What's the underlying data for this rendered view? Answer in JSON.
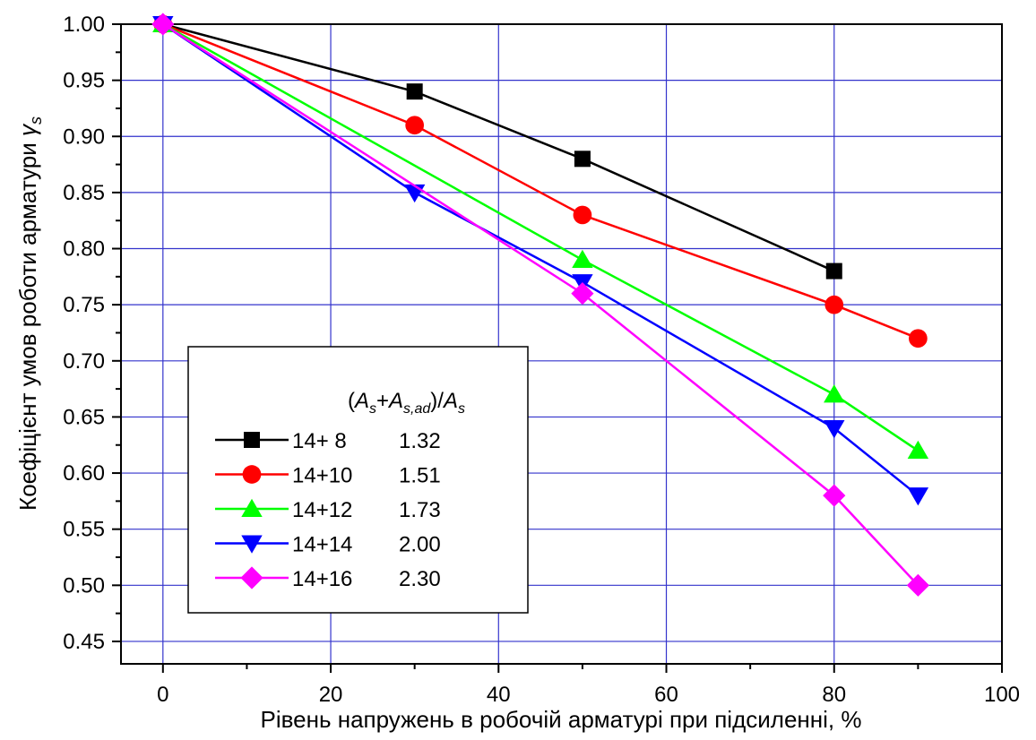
{
  "chart_data": {
    "type": "line",
    "xlabel": "Рівень напружень в робочій арматурі при підсиленні, %",
    "ylabel_main": "Коефіцієнт умов роботи арматури ",
    "ylabel_symbol": "γ",
    "ylabel_subscript": "s",
    "xlim": [
      -5,
      100
    ],
    "ylim": [
      0.43,
      1.0
    ],
    "x_ticks": [
      0,
      20,
      40,
      60,
      80,
      100
    ],
    "x_tick_labels": [
      "0",
      "20",
      "40",
      "60",
      "80",
      "100"
    ],
    "y_ticks": [
      0.45,
      0.5,
      0.55,
      0.6,
      0.65,
      0.7,
      0.75,
      0.8,
      0.85,
      0.9,
      0.95,
      1.0
    ],
    "y_tick_labels": [
      "0.45",
      "0.50",
      "0.55",
      "0.60",
      "0.65",
      "0.70",
      "0.75",
      "0.80",
      "0.85",
      "0.90",
      "0.95",
      "1.00"
    ],
    "grid": true,
    "legend_position": "bottom-left",
    "legend_header": {
      "open": "(",
      "a": "A",
      "a_sub": "s",
      "plus": "+",
      "b": "A",
      "b_sub": "s,ad",
      "close": ")/",
      "c": "A",
      "c_sub": "s"
    },
    "series": [
      {
        "name": "14+ 8",
        "ratio": "1.32",
        "color": "#000000",
        "marker": "square",
        "x": [
          0,
          30,
          50,
          80
        ],
        "y": [
          1.0,
          0.94,
          0.88,
          0.78
        ]
      },
      {
        "name": "14+10",
        "ratio": "1.51",
        "color": "#ff0000",
        "marker": "circle",
        "x": [
          0,
          30,
          50,
          80,
          90
        ],
        "y": [
          1.0,
          0.91,
          0.83,
          0.75,
          0.72
        ]
      },
      {
        "name": "14+12",
        "ratio": "1.73",
        "color": "#00ff00",
        "marker": "triangle-up",
        "x": [
          0,
          50,
          80,
          90
        ],
        "y": [
          1.0,
          0.79,
          0.67,
          0.62
        ]
      },
      {
        "name": "14+14",
        "ratio": "2.00",
        "color": "#0000ff",
        "marker": "triangle-down",
        "x": [
          0,
          30,
          50,
          80,
          90
        ],
        "y": [
          1.0,
          0.85,
          0.77,
          0.64,
          0.58
        ]
      },
      {
        "name": "14+16",
        "ratio": "2.30",
        "color": "#ff00ff",
        "marker": "diamond",
        "x": [
          0,
          50,
          80,
          90
        ],
        "y": [
          1.0,
          0.76,
          0.58,
          0.5
        ]
      }
    ]
  }
}
